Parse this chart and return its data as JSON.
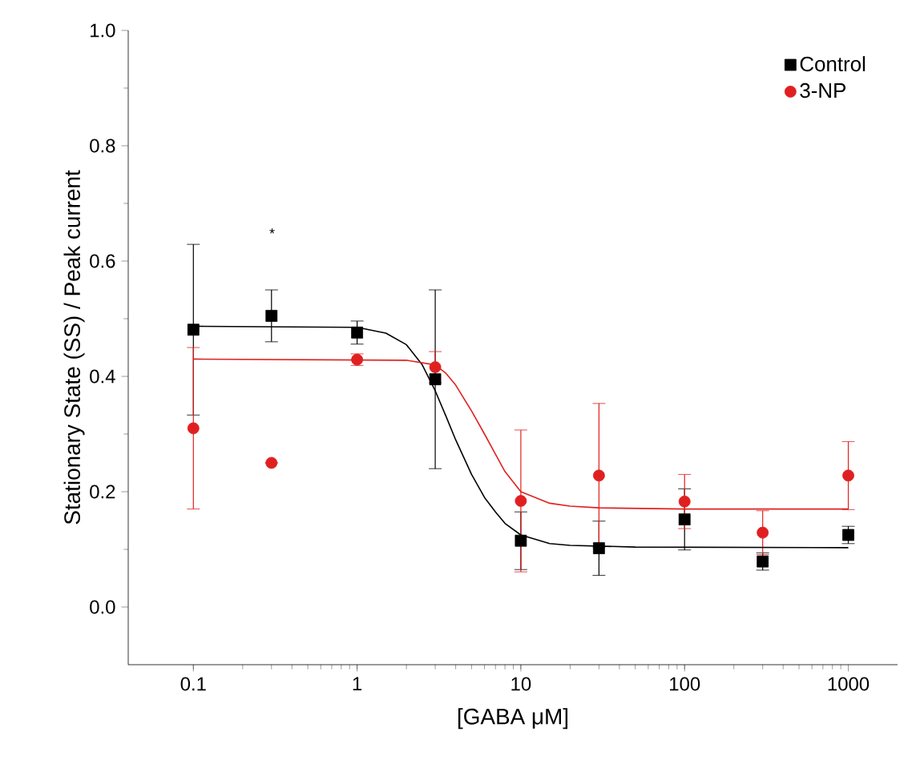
{
  "chart_data": {
    "type": "scatter",
    "xlabel": "[GABA μM]",
    "ylabel": "Stationary State (SS) / Peak current",
    "x": [
      0.1,
      0.3,
      1,
      3,
      10,
      30,
      100,
      300,
      1000
    ],
    "series": [
      {
        "name": "Control",
        "color": "#000000",
        "marker": "square",
        "values": [
          0.481,
          0.505,
          0.476,
          0.395,
          0.115,
          0.102,
          0.152,
          0.079,
          0.125
        ],
        "errors": [
          0.148,
          0.045,
          0.02,
          0.155,
          0.05,
          0.047,
          0.053,
          0.015,
          0.015
        ]
      },
      {
        "name": "3-NP",
        "color": "#e02020",
        "marker": "circle",
        "values": [
          0.31,
          0.25,
          0.429,
          0.416,
          0.184,
          0.228,
          0.183,
          0.129,
          0.228
        ],
        "errors": [
          0.14,
          null,
          0.01,
          0.027,
          0.123,
          0.125,
          0.047,
          0.038,
          0.059
        ]
      },
      {
        "type": "line",
        "color": "#000000",
        "x": [
          0.1,
          1,
          1.5,
          2,
          2.5,
          3,
          3.5,
          4,
          5,
          6,
          7,
          8,
          10,
          15,
          20,
          50,
          1000
        ],
        "values": [
          0.487,
          0.485,
          0.475,
          0.455,
          0.42,
          0.375,
          0.33,
          0.29,
          0.23,
          0.19,
          0.165,
          0.145,
          0.125,
          0.11,
          0.107,
          0.104,
          0.103
        ]
      },
      {
        "type": "line",
        "color": "#e02020",
        "x": [
          0.1,
          2,
          3,
          3.5,
          4,
          5,
          6,
          7,
          8,
          10,
          15,
          20,
          30,
          100,
          1000
        ],
        "values": [
          0.43,
          0.428,
          0.42,
          0.405,
          0.385,
          0.34,
          0.3,
          0.265,
          0.235,
          0.2,
          0.18,
          0.175,
          0.172,
          0.17,
          0.17
        ]
      }
    ],
    "annotations": [
      "*"
    ],
    "log": "x",
    "xlim": [
      0.04,
      2000
    ],
    "ylim": [
      -0.1,
      1.0
    ],
    "xticks": [
      0.1,
      1,
      10,
      100,
      1000
    ],
    "yticks": [
      {
        "value": 0,
        "label": "0.0"
      },
      {
        "value": 0.2,
        "label": "0.2"
      },
      {
        "value": 0.4,
        "label": "0.4"
      },
      {
        "value": 0.6,
        "label": "0.6"
      },
      {
        "value": 0.8,
        "label": "0.8"
      },
      {
        "value": 1.0,
        "label": "1.0"
      }
    ],
    "legend": "top right",
    "grid": false
  }
}
